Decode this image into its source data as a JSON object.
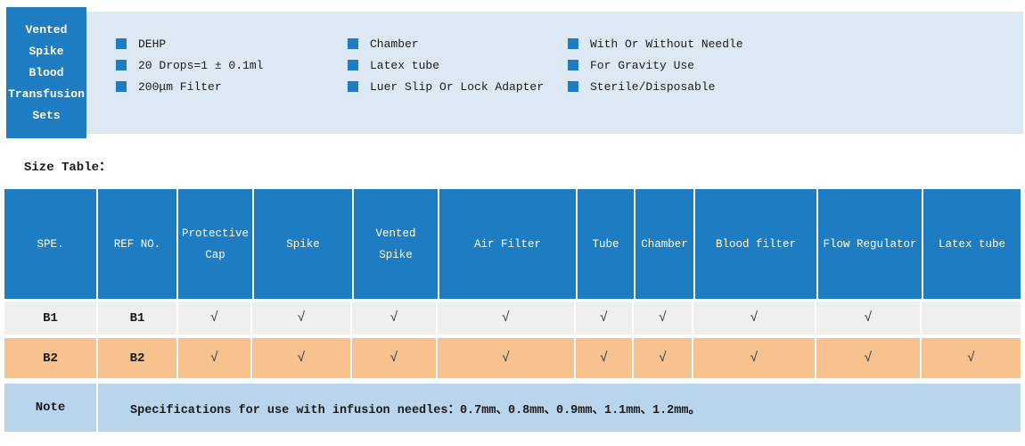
{
  "header": {
    "product_title_lines": [
      "Vented",
      "Spike",
      "Blood",
      "Transfusion",
      "Sets"
    ],
    "feature_columns": [
      {
        "items": [
          "DEHP",
          "20 Drops=1 ± 0.1ml",
          "200μm  Filter"
        ]
      },
      {
        "items": [
          "Chamber",
          "Latex tube",
          "Luer Slip Or Lock Adapter"
        ]
      },
      {
        "items": [
          "With Or Without Needle",
          "For Gravity Use",
          "Sterile/Disposable"
        ]
      }
    ]
  },
  "size_table": {
    "heading": "Size Table：",
    "columns": [
      "SPE.",
      "REF NO.",
      "Protective Cap",
      "Spike",
      "Vented Spike",
      "Air Filter",
      "Tube",
      "Chamber",
      "Blood filter",
      "Flow Regulator",
      "Latex tube"
    ],
    "check_glyph": "√",
    "rows": [
      {
        "cells": [
          "B1",
          "B1",
          "√",
          "√",
          "√",
          "√",
          "√",
          "√",
          "√",
          "√",
          ""
        ]
      },
      {
        "cells": [
          "B2",
          "B2",
          "√",
          "√",
          "√",
          "√",
          "√",
          "√",
          "√",
          "√",
          "√"
        ]
      }
    ],
    "note": {
      "label": "Note",
      "text": "Specifications for use with infusion needles：0.7mm、0.8mm、0.9mm、1.1mm、1.2mm。"
    }
  },
  "colors": {
    "primary_blue": "#1e7dc2",
    "panel_light_blue": "#dce9f5",
    "note_light_blue": "#b9d5ec",
    "row_b1_gray": "#efefee",
    "row_b2_orange": "#f7c28e"
  }
}
